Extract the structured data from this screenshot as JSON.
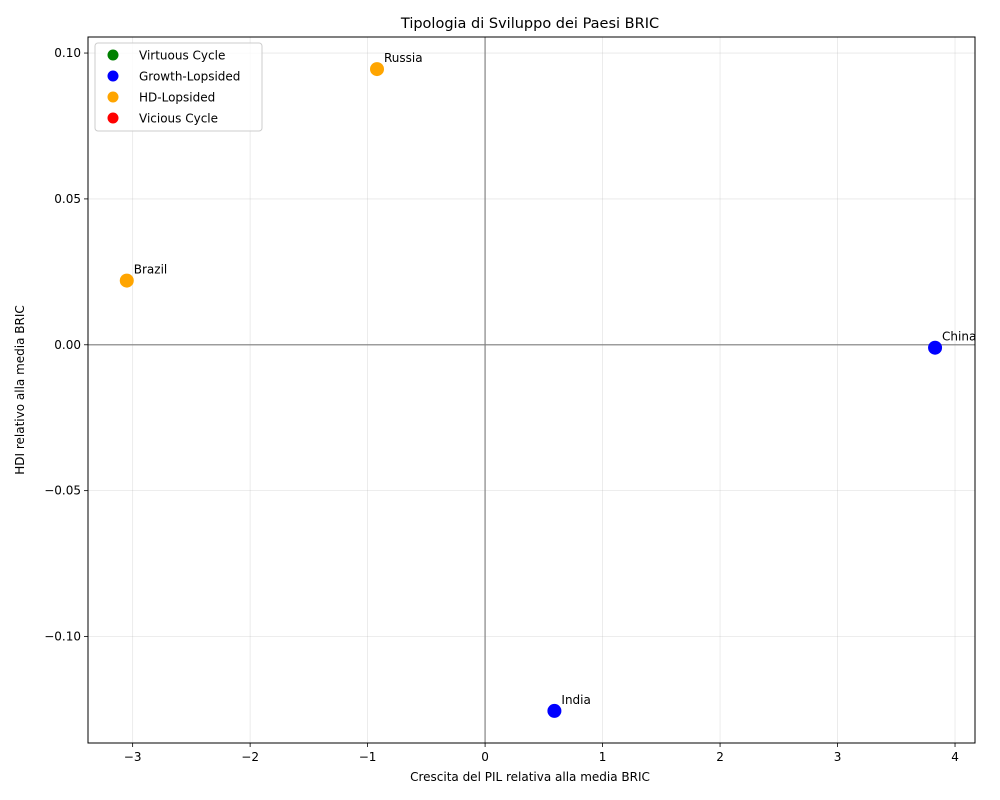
{
  "chart_data": {
    "type": "scatter",
    "title": "Tipologia di Sviluppo dei Paesi BRIC",
    "xlabel": "Crescita del PIL relativa alla media BRIC",
    "ylabel": "HDI relativo alla media BRIC",
    "xlim": [
      -3.38,
      4.17
    ],
    "ylim": [
      -0.1365,
      0.1055
    ],
    "xticks": [
      -3,
      -2,
      -1,
      0,
      1,
      2,
      3,
      4
    ],
    "xtick_labels": [
      "−3",
      "−2",
      "−1",
      "0",
      "1",
      "2",
      "3",
      "4"
    ],
    "yticks": [
      0.1,
      0.05,
      0.0,
      -0.05,
      -0.1
    ],
    "ytick_labels": [
      "0.10",
      "0.05",
      "0.00",
      "−0.05",
      "−0.10"
    ],
    "grid": true,
    "reference_lines": {
      "x": 0,
      "y": 0
    },
    "legend": {
      "placement": "upper-left",
      "entries": [
        {
          "label": "Virtuous Cycle",
          "color": "#008000"
        },
        {
          "label": "Growth-Lopsided",
          "color": "#0000ff"
        },
        {
          "label": "HD-Lopsided",
          "color": "#ffa500"
        },
        {
          "label": "Vicious Cycle",
          "color": "#ff0000"
        }
      ]
    },
    "points": [
      {
        "label": "Russia",
        "x": -0.92,
        "y": 0.0945,
        "category": "HD-Lopsided",
        "color": "#ffa500"
      },
      {
        "label": "Brazil",
        "x": -3.05,
        "y": 0.022,
        "category": "HD-Lopsided",
        "color": "#ffa500"
      },
      {
        "label": "China",
        "x": 3.83,
        "y": -0.001,
        "category": "Growth-Lopsided",
        "color": "#0000ff"
      },
      {
        "label": "India",
        "x": 0.59,
        "y": -0.1255,
        "category": "Growth-Lopsided",
        "color": "#0000ff"
      }
    ]
  }
}
